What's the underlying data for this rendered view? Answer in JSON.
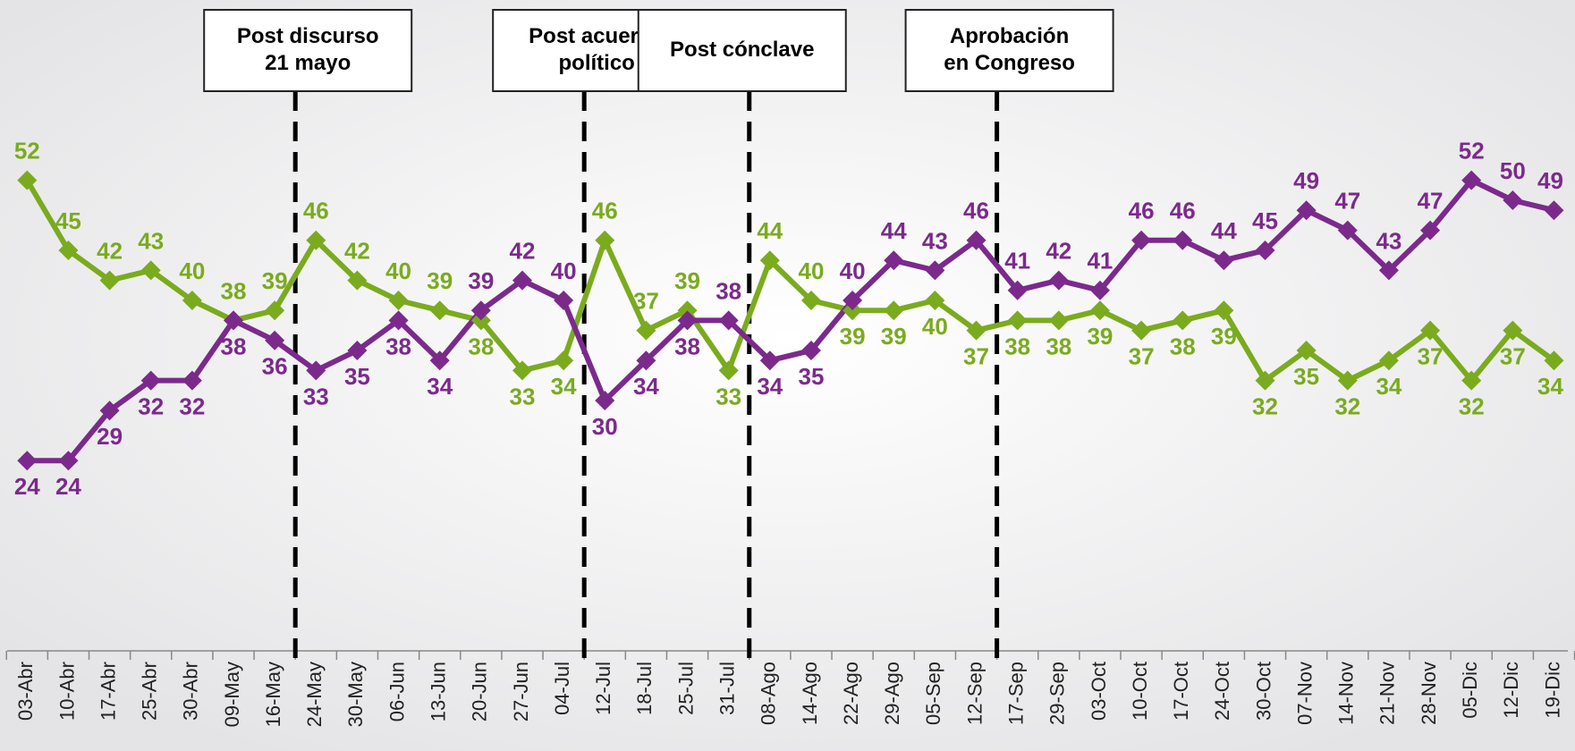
{
  "chart_data": {
    "type": "line",
    "categories": [
      "03-Abr",
      "10-Abr",
      "17-Abr",
      "25-Abr",
      "30-Abr",
      "09-May",
      "16-May",
      "24-May",
      "30-May",
      "06-Jun",
      "13-Jun",
      "20-Jun",
      "27-Jun",
      "04-Jul",
      "12-Jul",
      "18-Jul",
      "25-Jul",
      "31-Jul",
      "08-Ago",
      "14-Ago",
      "22-Ago",
      "29-Ago",
      "05-Sep",
      "12-Sep",
      "17-Sep",
      "29-Sep",
      "03-Oct",
      "10-Oct",
      "17-Oct",
      "24-Oct",
      "30-Oct",
      "07-Nov",
      "14-Nov",
      "21-Nov",
      "28-Nov",
      "05-Dic",
      "12-Dic",
      "19-Dic"
    ],
    "series": [
      {
        "color": "#7aab1e",
        "values": [
          52,
          45,
          42,
          43,
          40,
          38,
          39,
          46,
          42,
          40,
          39,
          38,
          33,
          34,
          46,
          37,
          39,
          33,
          44,
          40,
          39,
          39,
          40,
          37,
          38,
          38,
          39,
          37,
          38,
          39,
          32,
          35,
          32,
          34,
          37,
          32,
          37,
          34
        ]
      },
      {
        "color": "#7b2a8c",
        "values": [
          24,
          24,
          29,
          32,
          32,
          38,
          36,
          33,
          35,
          38,
          34,
          39,
          42,
          40,
          30,
          34,
          38,
          38,
          34,
          35,
          40,
          44,
          43,
          46,
          41,
          42,
          41,
          46,
          46,
          44,
          45,
          49,
          47,
          43,
          47,
          52,
          50,
          49
        ]
      }
    ],
    "ylim": [
      5,
      70
    ],
    "annotations": [
      {
        "x": 6.5,
        "lines": [
          "Post discurso",
          "21 mayo"
        ]
      },
      {
        "x": 13.5,
        "lines": [
          "Post acuerdo",
          "político"
        ]
      },
      {
        "x": 17.5,
        "lines": [
          "Post cónclave"
        ]
      },
      {
        "x": 23.5,
        "lines": [
          "Aprobación",
          "en Congreso"
        ]
      }
    ]
  }
}
